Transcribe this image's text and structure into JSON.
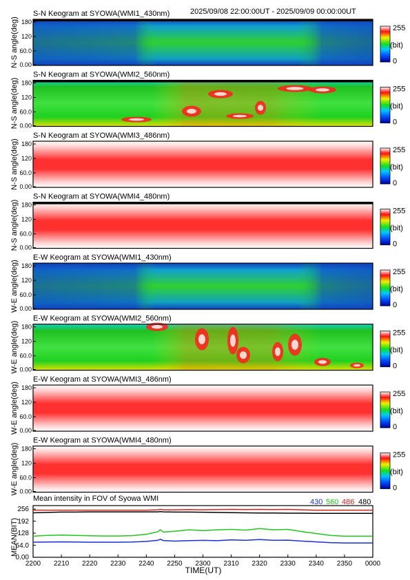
{
  "header": {
    "time_range": "2025/09/08 22:00:00UT - 2025/09/09 00:00:00UT"
  },
  "panels": [
    {
      "title": "S-N Keogram at SYOWA(WMI1_430nm)",
      "ylabel": "N-S angle(deg)",
      "yticks": [
        "180",
        "120",
        "60.0",
        "0.00"
      ],
      "colorbar_max": "255",
      "colorbar_unit": "(bit)",
      "colorbar_min": "0"
    },
    {
      "title": "S-N Keogram at SYOWA(WMI2_560nm)",
      "ylabel": "N-S angle(deg)",
      "yticks": [
        "180",
        "120",
        "60.0",
        "0.00"
      ],
      "colorbar_max": "255",
      "colorbar_unit": "(bit)",
      "colorbar_min": "0"
    },
    {
      "title": "S-N Keogram at SYOWA(WMI3_486nm)",
      "ylabel": "N-S angle(deg)",
      "yticks": [
        "180",
        "120",
        "60.0",
        "0.00"
      ],
      "colorbar_max": "255",
      "colorbar_unit": "(bit)",
      "colorbar_min": "0"
    },
    {
      "title": "S-N Keogram at SYOWA(WMI4_480nm)",
      "ylabel": "N-S angle(deg)",
      "yticks": [
        "180",
        "120",
        "60.0",
        "0.00"
      ],
      "colorbar_max": "255",
      "colorbar_unit": "(bit)",
      "colorbar_min": "0"
    },
    {
      "title": "E-W Keogram at SYOWA(WMI1_430nm)",
      "ylabel": "W-E angle(deg)",
      "yticks": [
        "180",
        "120",
        "60.0",
        "0.00"
      ],
      "colorbar_max": "255",
      "colorbar_unit": "(bit)",
      "colorbar_min": "0"
    },
    {
      "title": "E-W Keogram at SYOWA(WMI2_560nm)",
      "ylabel": "W-E angle(deg)",
      "yticks": [
        "180",
        "120",
        "60.0",
        "0.00"
      ],
      "colorbar_max": "255",
      "colorbar_unit": "(bit)",
      "colorbar_min": "0"
    },
    {
      "title": "E-W Keogram at SYOWA(WMI3_486nm)",
      "ylabel": "W-E angle(deg)",
      "yticks": [
        "180",
        "120",
        "60.0",
        "0.00"
      ],
      "colorbar_max": "255",
      "colorbar_unit": "(bit)",
      "colorbar_min": "0"
    },
    {
      "title": "E-W Keogram at SYOWA(WMI4_480nm)",
      "ylabel": "W-E angle(deg)",
      "yticks": [
        "180",
        "120",
        "60.0",
        "0.00"
      ],
      "colorbar_max": "255",
      "colorbar_unit": "(bit)",
      "colorbar_min": "0"
    }
  ],
  "mean_plot": {
    "title": "Mean intensity in FOV of Syowa WMI",
    "legend": [
      {
        "label": "430",
        "color": "#1a2fd0"
      },
      {
        "label": "560",
        "color": "#22c41d"
      },
      {
        "label": "486",
        "color": "#d02020"
      },
      {
        "label": "480",
        "color": "#000000"
      }
    ],
    "ylabel": "MEAN(BIT)",
    "yticks": [
      "256",
      "192",
      "128",
      "64.0",
      "0.00"
    ]
  },
  "xaxis": {
    "ticks": [
      "2200",
      "2210",
      "2220",
      "2230",
      "2240",
      "2250",
      "2300",
      "2310",
      "2320",
      "2330",
      "2340",
      "2350",
      "0000"
    ],
    "label": "TIME(UT)"
  },
  "chart_data": {
    "type": "line",
    "title": "Mean intensity in FOV of Syowa WMI",
    "xlabel": "TIME(UT)",
    "ylabel": "MEAN(BIT)",
    "ylim": [
      0,
      256
    ],
    "x": [
      0,
      5,
      10,
      15,
      20,
      25,
      30,
      35,
      40,
      44,
      45,
      46,
      50,
      55,
      60,
      65,
      70,
      75,
      80,
      85,
      90,
      95,
      100,
      105,
      110,
      115,
      120
    ],
    "x_unit": "minutes after 2200 UT",
    "series": [
      {
        "name": "430",
        "color": "#1a2fd0",
        "values": [
          80,
          81,
          82,
          81,
          80,
          80,
          80,
          81,
          84,
          90,
          96,
          89,
          86,
          88,
          90,
          88,
          92,
          90,
          94,
          90,
          91,
          86,
          82,
          78,
          76,
          76,
          76
        ]
      },
      {
        "name": "560",
        "color": "#22c41d",
        "values": [
          112,
          116,
          118,
          116,
          114,
          113,
          113,
          115,
          122,
          135,
          146,
          134,
          138,
          146,
          142,
          146,
          148,
          144,
          152,
          146,
          148,
          136,
          126,
          116,
          112,
          112,
          112
        ]
      },
      {
        "name": "486",
        "color": "#d02020",
        "values": [
          250,
          250,
          250,
          250,
          250,
          250,
          250,
          250,
          250,
          252,
          254,
          252,
          252,
          253,
          252,
          253,
          254,
          253,
          254,
          253,
          254,
          252,
          250,
          250,
          250,
          250,
          250
        ]
      },
      {
        "name": "480",
        "color": "#000000",
        "values": [
          236,
          238,
          240,
          240,
          241,
          241,
          241,
          241,
          241,
          241,
          242,
          241,
          240,
          240,
          239,
          238,
          237,
          236,
          235,
          235,
          234,
          234,
          233,
          233,
          233,
          233,
          233
        ]
      }
    ]
  }
}
